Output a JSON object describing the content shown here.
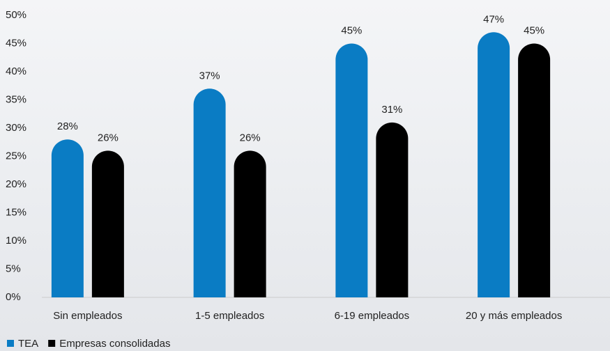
{
  "chart_data": {
    "type": "bar",
    "categories": [
      "Sin empleados",
      "1-5 empleados",
      "6-19 empleados",
      "20 y más empleados"
    ],
    "series": [
      {
        "name": "TEA",
        "color": "#0a7cc4",
        "values": [
          28,
          37,
          45,
          47
        ],
        "value_labels": [
          "28%",
          "37%",
          "45%",
          "47%"
        ]
      },
      {
        "name": "Empresas consolidadas",
        "color": "#000000",
        "values": [
          26,
          26,
          31,
          45
        ],
        "value_labels": [
          "26%",
          "26%",
          "31%",
          "45%"
        ]
      }
    ],
    "ylim": [
      0,
      50
    ],
    "yticks": [
      {
        "value": 0,
        "label": "0%"
      },
      {
        "value": 5,
        "label": "5%"
      },
      {
        "value": 10,
        "label": "10%"
      },
      {
        "value": 15,
        "label": "15%"
      },
      {
        "value": 20,
        "label": "20%"
      },
      {
        "value": 25,
        "label": "25%"
      },
      {
        "value": 30,
        "label": "30%"
      },
      {
        "value": 35,
        "label": "35%"
      },
      {
        "value": 40,
        "label": "40%"
      },
      {
        "value": 45,
        "label": "45%"
      },
      {
        "value": 50,
        "label": "50%"
      }
    ],
    "legend": "bottom-left"
  }
}
